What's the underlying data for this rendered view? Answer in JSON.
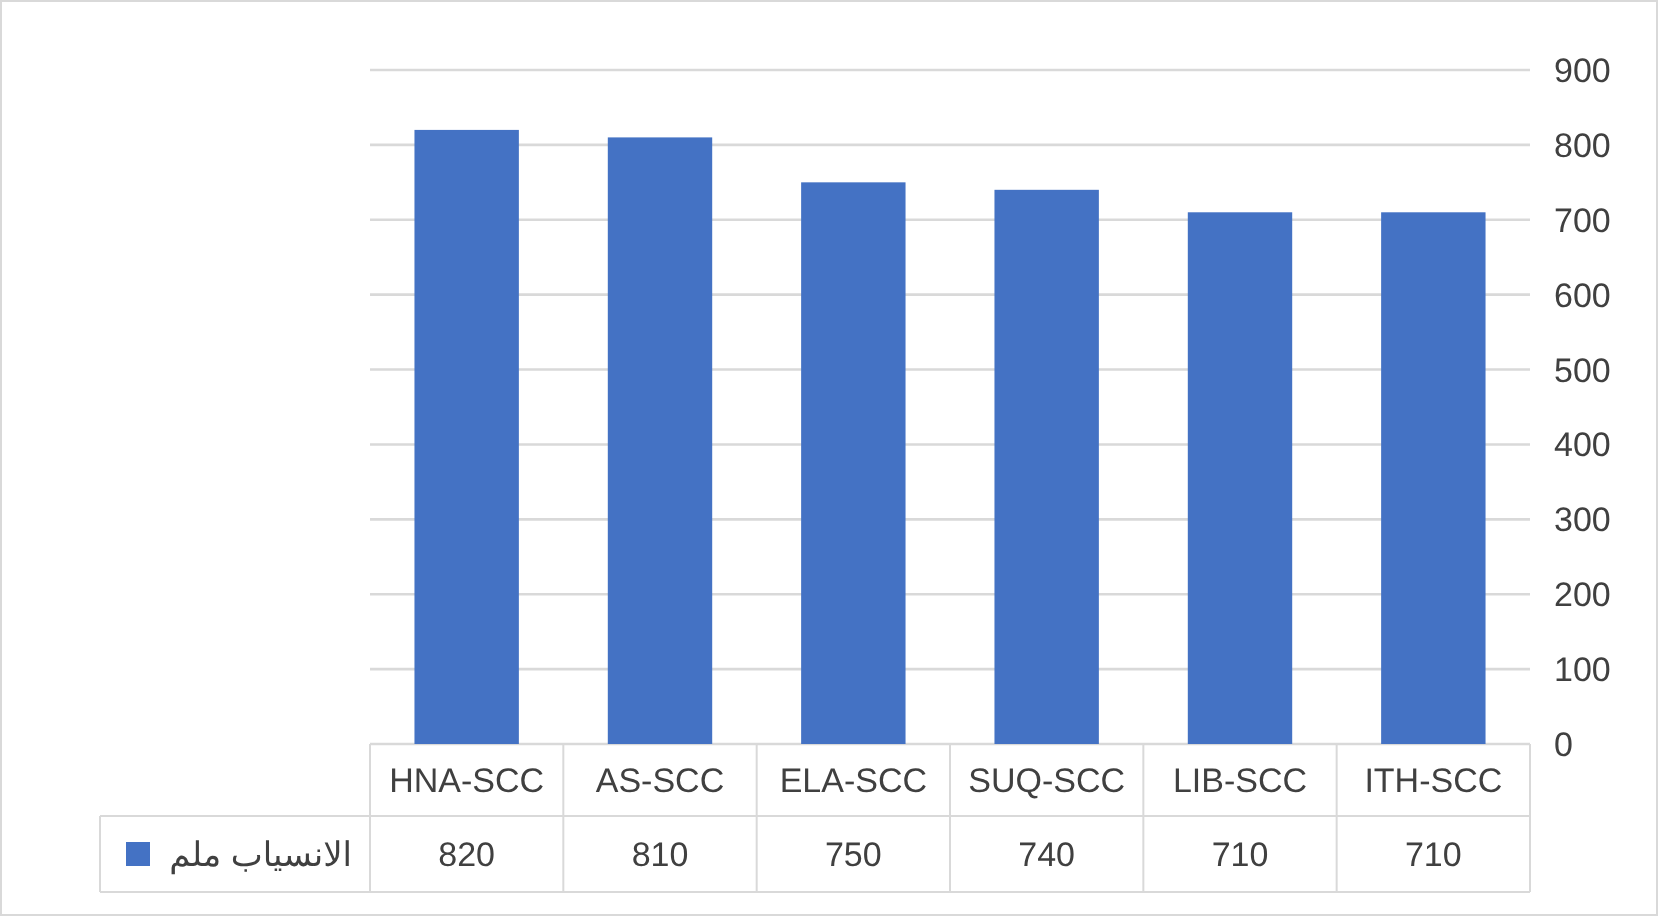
{
  "chart_data": {
    "type": "bar",
    "categories": [
      "HNA-SCC",
      "AS-SCC",
      "ELA-SCC",
      "SUQ-SCC",
      "LIB-SCC",
      "ITH-SCC"
    ],
    "series": [
      {
        "name": "الانسياب ملم",
        "color": "#4472c4",
        "values": [
          820,
          810,
          750,
          740,
          710,
          710
        ]
      }
    ],
    "ylim": [
      0,
      900
    ],
    "yticks": [
      0,
      100,
      200,
      300,
      400,
      500,
      600,
      700,
      800,
      900
    ],
    "grid": "y",
    "legend": "bottom",
    "data_labels": true
  }
}
